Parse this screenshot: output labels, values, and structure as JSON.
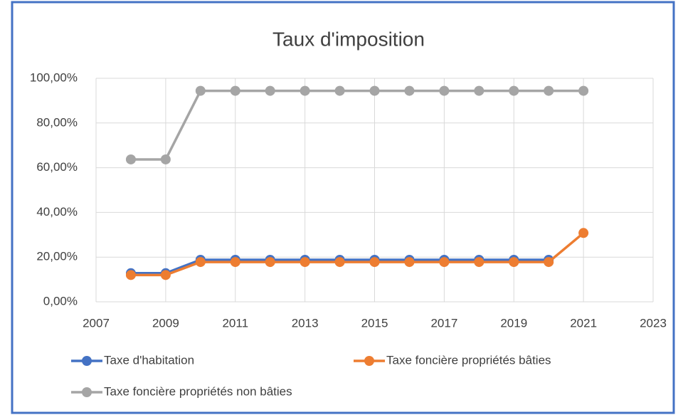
{
  "chart_data": {
    "type": "line",
    "title": "Taux d'imposition",
    "x": [
      2008,
      2009,
      2010,
      2011,
      2012,
      2013,
      2014,
      2015,
      2016,
      2017,
      2018,
      2019,
      2020,
      2021
    ],
    "series": [
      {
        "name": "Taxe d'habitation",
        "color": "#4472c4",
        "values": [
          12.8,
          12.8,
          18.8,
          18.8,
          18.8,
          18.8,
          18.8,
          18.8,
          18.8,
          18.8,
          18.8,
          18.8,
          18.8,
          null
        ]
      },
      {
        "name": "Taxe foncière propriétés bâties",
        "color": "#ed7d31",
        "values": [
          12,
          12,
          17.8,
          17.8,
          17.8,
          17.8,
          17.8,
          17.8,
          17.8,
          17.8,
          17.8,
          17.8,
          17.8,
          30.8
        ]
      },
      {
        "name": "Taxe foncière propriétés non bâties",
        "color": "#a5a5a5",
        "values": [
          63.7,
          63.7,
          94.4,
          94.4,
          94.4,
          94.4,
          94.4,
          94.4,
          94.4,
          94.4,
          94.4,
          94.4,
          94.4,
          94.4
        ]
      }
    ],
    "xlim": [
      2007,
      2023
    ],
    "xticks": [
      2007,
      2009,
      2011,
      2013,
      2015,
      2017,
      2019,
      2021,
      2023
    ],
    "ylim": [
      0,
      100
    ],
    "yticks": [
      {
        "value": 0,
        "label": "0,00%"
      },
      {
        "value": 20,
        "label": "20,00%"
      },
      {
        "value": 40,
        "label": "40,00%"
      },
      {
        "value": 60,
        "label": "60,00%"
      },
      {
        "value": 80,
        "label": "80,00%"
      },
      {
        "value": 100,
        "label": "100,00%"
      }
    ],
    "grid": true,
    "legend": "bottom"
  }
}
